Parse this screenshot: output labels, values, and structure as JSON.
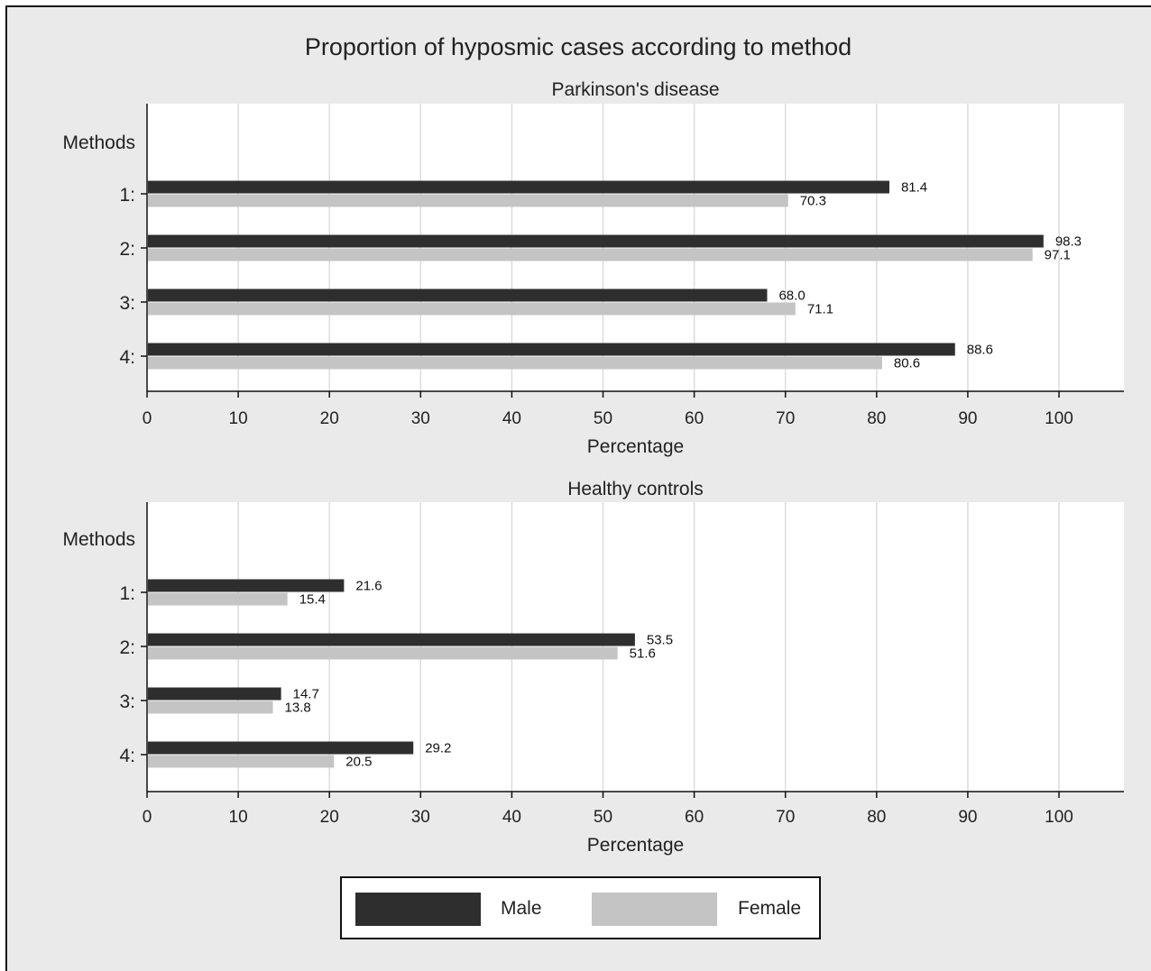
{
  "title": "Proportion of hyposmic cases according to method",
  "colors": {
    "male": "#2e2e2e",
    "female": "#c4c4c4",
    "background": "#eaeaea",
    "plot_area": "#ffffff",
    "grid": "#dcdcdc",
    "text": "#222222"
  },
  "legend": {
    "male_label": "Male",
    "female_label": "Female",
    "position": "bottom-center"
  },
  "chart_data": [
    {
      "type": "bar",
      "orientation": "horizontal",
      "title": "Parkinson's disease",
      "ylabel": "Methods",
      "xlabel": "Percentage",
      "xlim": [
        0,
        100
      ],
      "xticks": [
        "0",
        "10",
        "20",
        "30",
        "40",
        "50",
        "60",
        "70",
        "80",
        "90",
        "100"
      ],
      "grid": true,
      "categories": [
        "1:",
        "2:",
        "3:",
        "4:"
      ],
      "series": [
        {
          "name": "Male",
          "values": [
            81.4,
            98.3,
            68.0,
            88.6
          ],
          "labels": [
            "81.4",
            "98.3",
            "68.0",
            "88.6"
          ]
        },
        {
          "name": "Female",
          "values": [
            70.3,
            97.1,
            71.1,
            80.6
          ],
          "labels": [
            "70.3",
            "97.1",
            "71.1",
            "80.6"
          ]
        }
      ]
    },
    {
      "type": "bar",
      "orientation": "horizontal",
      "title": "Healthy controls",
      "ylabel": "Methods",
      "xlabel": "Percentage",
      "xlim": [
        0,
        100
      ],
      "xticks": [
        "0",
        "10",
        "20",
        "30",
        "40",
        "50",
        "60",
        "70",
        "80",
        "90",
        "100"
      ],
      "grid": true,
      "categories": [
        "1:",
        "2:",
        "3:",
        "4:"
      ],
      "series": [
        {
          "name": "Male",
          "values": [
            21.6,
            53.5,
            14.7,
            29.2
          ],
          "labels": [
            "21.6",
            "53.5",
            "14.7",
            "29.2"
          ]
        },
        {
          "name": "Female",
          "values": [
            15.4,
            51.6,
            13.8,
            20.5
          ],
          "labels": [
            "15.4",
            "51.6",
            "13.8",
            "20.5"
          ]
        }
      ]
    }
  ]
}
